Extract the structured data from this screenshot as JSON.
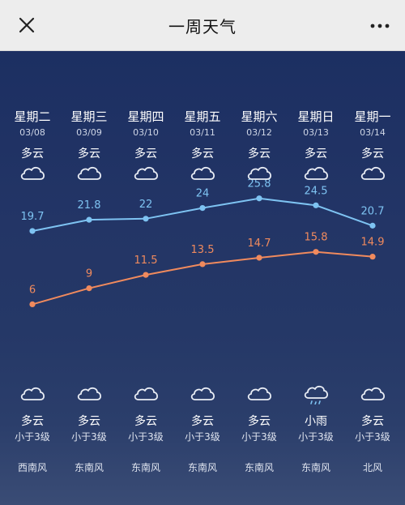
{
  "header": {
    "title": "一周天气"
  },
  "days": [
    {
      "day": "星期二",
      "date": "03/08",
      "cond_top": "多云",
      "icon_top": "cloud-icon",
      "high": 19.7,
      "low": 6,
      "high_label": "19.7",
      "low_label": "6",
      "icon_bottom": "cloud-icon",
      "cond_bottom": "多云",
      "wind": "小于3级",
      "direction": "西南风"
    },
    {
      "day": "星期三",
      "date": "03/09",
      "cond_top": "多云",
      "icon_top": "cloud-icon",
      "high": 21.8,
      "low": 9,
      "high_label": "21.8",
      "low_label": "9",
      "icon_bottom": "cloud-icon",
      "cond_bottom": "多云",
      "wind": "小于3级",
      "direction": "东南风"
    },
    {
      "day": "星期四",
      "date": "03/10",
      "cond_top": "多云",
      "icon_top": "cloud-icon",
      "high": 22,
      "low": 11.5,
      "high_label": "22",
      "low_label": "11.5",
      "icon_bottom": "cloud-icon",
      "cond_bottom": "多云",
      "wind": "小于3级",
      "direction": "东南风"
    },
    {
      "day": "星期五",
      "date": "03/11",
      "cond_top": "多云",
      "icon_top": "cloud-icon",
      "high": 24,
      "low": 13.5,
      "high_label": "24",
      "low_label": "13.5",
      "icon_bottom": "cloud-icon",
      "cond_bottom": "多云",
      "wind": "小于3级",
      "direction": "东南风"
    },
    {
      "day": "星期六",
      "date": "03/12",
      "cond_top": "多云",
      "icon_top": "cloud-icon",
      "high": 25.8,
      "low": 14.7,
      "high_label": "25.8",
      "low_label": "14.7",
      "icon_bottom": "cloud-icon",
      "cond_bottom": "多云",
      "wind": "小于3级",
      "direction": "东南风"
    },
    {
      "day": "星期日",
      "date": "03/13",
      "cond_top": "多云",
      "icon_top": "cloud-icon",
      "high": 24.5,
      "low": 15.8,
      "high_label": "24.5",
      "low_label": "15.8",
      "icon_bottom": "rain-cloud-icon",
      "cond_bottom": "小雨",
      "wind": "小于3级",
      "direction": "东南风"
    },
    {
      "day": "星期一",
      "date": "03/14",
      "cond_top": "多云",
      "icon_top": "cloud-icon",
      "high": 20.7,
      "low": 14.9,
      "high_label": "20.7",
      "low_label": "14.9",
      "icon_bottom": "cloud-icon",
      "cond_bottom": "多云",
      "wind": "小于3级",
      "direction": "北风"
    }
  ],
  "colors": {
    "high_line": "#7ec3f2",
    "low_line": "#f08a5d",
    "bg_top": "#1c2f62"
  }
}
